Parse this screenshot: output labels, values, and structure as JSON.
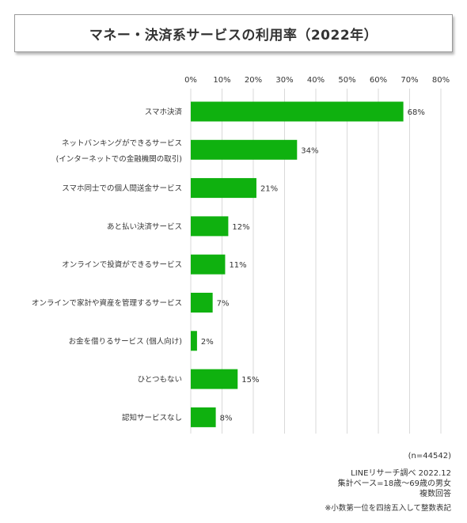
{
  "header": {
    "title": "マネー・決済系サービスの利用率（2022年）"
  },
  "chart_data": {
    "type": "bar",
    "orientation": "horizontal",
    "title": "マネー・決済系サービスの利用率（2022年）",
    "xlim": [
      0,
      80
    ],
    "ticks": [
      {
        "value": 0,
        "label": "0%"
      },
      {
        "value": 10,
        "label": "10%"
      },
      {
        "value": 20,
        "label": "20%"
      },
      {
        "value": 30,
        "label": "30%"
      },
      {
        "value": 40,
        "label": "40%"
      },
      {
        "value": 50,
        "label": "50%"
      },
      {
        "value": 60,
        "label": "60%"
      },
      {
        "value": 70,
        "label": "70%"
      },
      {
        "value": 80,
        "label": "80%"
      }
    ],
    "grid": true,
    "bar_color": "#0fb10f",
    "categories": [
      [
        "スマホ決済"
      ],
      [
        "ネットバンキングができるサービス",
        "(インターネットでの金融機関の取引)"
      ],
      [
        "スマホ同士での個人間送金サービス"
      ],
      [
        "あと払い決済サービス"
      ],
      [
        "オンラインで投資ができるサービス"
      ],
      [
        "オンラインで家計や資産を管理するサービス"
      ],
      [
        "お金を借りるサービス (個人向け)"
      ],
      [
        "ひとつもない"
      ],
      [
        "認知サービスなし"
      ]
    ],
    "values": [
      68,
      34,
      21,
      12,
      11,
      7,
      2,
      15,
      8
    ],
    "value_labels": [
      "68%",
      "34%",
      "21%",
      "12%",
      "11%",
      "7%",
      "2%",
      "15%",
      "8%"
    ]
  },
  "footer": {
    "n": "(n=44542)",
    "source": "LINEリサーチ調べ 2022.12",
    "base": "集計ベース=18歳～69歳の男女",
    "multi": "複数回答",
    "note": "※小数第一位を四捨五入して整数表記"
  }
}
